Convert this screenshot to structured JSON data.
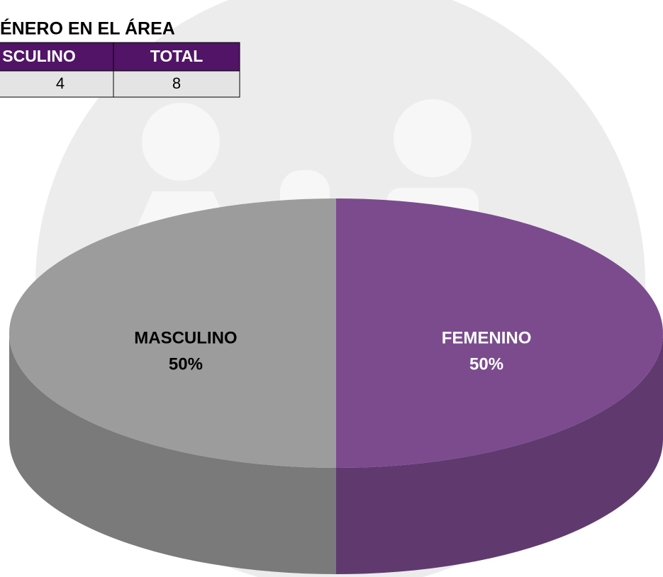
{
  "title": "ÉNERO EN EL ÁREA",
  "table": {
    "header": [
      "SCULINO",
      "TOTAL"
    ],
    "rows": [
      [
        "4",
        "8"
      ]
    ]
  },
  "chart_data": {
    "type": "pie",
    "categories": [
      "FEMENINO",
      "MASCULINO"
    ],
    "values": [
      50,
      50
    ],
    "value_labels": [
      "50%",
      "50%"
    ],
    "colors": [
      "#7b4b8e",
      "#9c9c9c"
    ]
  }
}
